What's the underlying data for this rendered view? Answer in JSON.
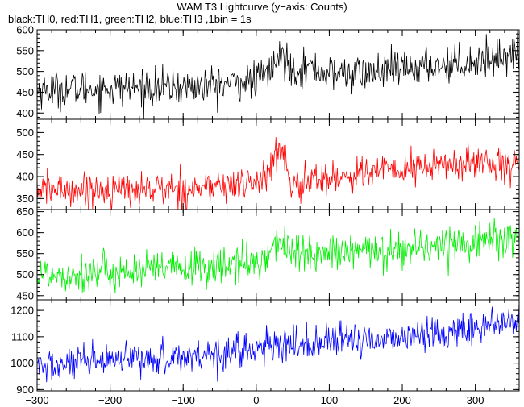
{
  "header": {
    "title": "WAM T3 Lightcurve (y−axis: Counts)",
    "subtitle": "black:TH0, red:TH1, green:TH2, blue:TH3 ,1bin = 1s"
  },
  "chart_data": {
    "type": "line",
    "title": "WAM T3 Lightcurve (y−axis: Counts)",
    "subtitle": "black:TH0, red:TH1, green:TH2, blue:TH3 ,1bin = 1s",
    "xlabel": "",
    "ylabel": "Counts",
    "xlim": [
      -300,
      360
    ],
    "x_ticks": [
      -300,
      -200,
      -100,
      0,
      100,
      200,
      300
    ],
    "x_tick_labels": [
      "−300",
      "−200",
      "−100",
      "0",
      "100",
      "200",
      "300"
    ],
    "bin_seconds": 1,
    "grid": false,
    "panels": [
      {
        "name": "TH0",
        "color": "#000000",
        "ylim": [
          385,
          600
        ],
        "y_ticks": [
          400,
          450,
          500,
          550,
          600
        ],
        "trend_x": [
          -300,
          -200,
          -100,
          -50,
          0,
          20,
          35,
          50,
          70,
          100,
          150,
          200,
          250,
          300,
          360
        ],
        "trend_y": [
          455,
          460,
          462,
          468,
          478,
          505,
          540,
          505,
          510,
          495,
          495,
          505,
          515,
          525,
          545
        ]
      },
      {
        "name": "TH1",
        "color": "#ff0000",
        "ylim": [
          325,
          530
        ],
        "y_ticks": [
          350,
          400,
          450,
          500
        ],
        "trend_x": [
          -300,
          -200,
          -100,
          -50,
          0,
          20,
          35,
          45,
          60,
          80,
          100,
          150,
          200,
          250,
          300,
          360
        ],
        "trend_y": [
          370,
          370,
          372,
          378,
          385,
          420,
          465,
          390,
          375,
          400,
          395,
          410,
          415,
          425,
          430,
          435
        ]
      },
      {
        "name": "TH2",
        "color": "#00ee00",
        "ylim": [
          440,
          655
        ],
        "y_ticks": [
          450,
          500,
          550,
          600,
          650
        ],
        "trend_x": [
          -300,
          -200,
          -100,
          -50,
          0,
          20,
          35,
          50,
          70,
          100,
          150,
          200,
          250,
          300,
          360
        ],
        "trend_y": [
          500,
          505,
          515,
          520,
          528,
          555,
          585,
          550,
          548,
          548,
          555,
          562,
          570,
          580,
          590
        ]
      },
      {
        "name": "TH3",
        "color": "#0000ff",
        "ylim": [
          895,
          1240
        ],
        "y_ticks": [
          900,
          1000,
          1100,
          1200
        ],
        "trend_x": [
          -300,
          -200,
          -100,
          0,
          100,
          200,
          300,
          360
        ],
        "trend_y": [
          985,
          1005,
          1025,
          1055,
          1080,
          1100,
          1130,
          1160
        ]
      }
    ]
  }
}
